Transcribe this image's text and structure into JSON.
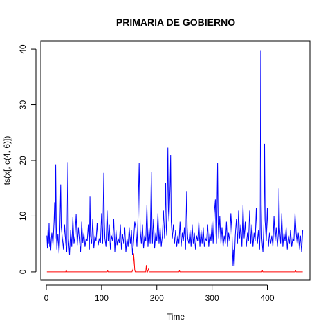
{
  "chart_data": {
    "type": "line",
    "title": "PRIMARIA DE GOBIERNO",
    "xlabel": "Time",
    "ylabel": "ts(x[, c(4, 6)])",
    "xlim": [
      -10,
      477
    ],
    "ylim": [
      -1.5,
      41.5
    ],
    "x_ticks": [
      0,
      100,
      200,
      300,
      400
    ],
    "y_ticks": [
      0,
      10,
      20,
      30,
      40
    ],
    "grid": false,
    "legend": "none",
    "series": [
      {
        "color": "#0000FF",
        "points": [
          [
            1,
            6.5
          ],
          [
            2,
            4.2
          ],
          [
            3,
            7.5
          ],
          [
            4,
            5.0
          ],
          [
            5,
            8.8
          ],
          [
            6,
            4.5
          ],
          [
            7,
            6.2
          ],
          [
            8,
            3.8
          ],
          [
            9,
            5.9
          ],
          [
            10,
            7.0
          ],
          [
            12,
            4.8
          ],
          [
            14,
            9.0
          ],
          [
            15,
            12.5
          ],
          [
            16,
            6.0
          ],
          [
            17,
            19.3
          ],
          [
            18,
            8.2
          ],
          [
            19,
            4.0
          ],
          [
            21,
            6.8
          ],
          [
            23,
            3.3
          ],
          [
            24,
            5.5
          ],
          [
            26,
            15.7
          ],
          [
            27,
            8.0
          ],
          [
            29,
            6.0
          ],
          [
            31,
            4.0
          ],
          [
            33,
            8.5
          ],
          [
            35,
            5.2
          ],
          [
            37,
            3.5
          ],
          [
            38,
            12.0
          ],
          [
            39,
            19.7
          ],
          [
            40,
            6.0
          ],
          [
            42,
            3.0
          ],
          [
            44,
            7.5
          ],
          [
            46,
            4.5
          ],
          [
            48,
            9.8
          ],
          [
            50,
            5.0
          ],
          [
            52,
            6.5
          ],
          [
            54,
            10.3
          ],
          [
            56,
            4.8
          ],
          [
            58,
            8.0
          ],
          [
            60,
            5.5
          ],
          [
            62,
            3.5
          ],
          [
            64,
            9.0
          ],
          [
            66,
            5.2
          ],
          [
            68,
            7.0
          ],
          [
            70,
            4.5
          ],
          [
            72,
            6.0
          ],
          [
            74,
            5.5
          ],
          [
            76,
            8.5
          ],
          [
            78,
            4.0
          ],
          [
            79,
            13.5
          ],
          [
            80,
            6.5
          ],
          [
            82,
            5.0
          ],
          [
            84,
            9.5
          ],
          [
            86,
            4.2
          ],
          [
            88,
            6.5
          ],
          [
            90,
            5.5
          ],
          [
            92,
            8.8
          ],
          [
            94,
            4.8
          ],
          [
            96,
            6.0
          ],
          [
            98,
            5.2
          ],
          [
            100,
            10.5
          ],
          [
            102,
            5.0
          ],
          [
            104,
            17.8
          ],
          [
            105,
            9.0
          ],
          [
            106,
            6.0
          ],
          [
            108,
            4.5
          ],
          [
            110,
            11.0
          ],
          [
            112,
            5.5
          ],
          [
            114,
            8.5
          ],
          [
            116,
            4.0
          ],
          [
            118,
            6.5
          ],
          [
            120,
            5.5
          ],
          [
            122,
            9.5
          ],
          [
            124,
            3.5
          ],
          [
            126,
            7.5
          ],
          [
            128,
            4.8
          ],
          [
            130,
            6.0
          ],
          [
            132,
            5.2
          ],
          [
            134,
            8.5
          ],
          [
            136,
            4.0
          ],
          [
            138,
            6.8
          ],
          [
            140,
            5.0
          ],
          [
            142,
            8.0
          ],
          [
            144,
            3.5
          ],
          [
            146,
            6.0
          ],
          [
            148,
            4.5
          ],
          [
            150,
            8.0
          ],
          [
            152,
            5.0
          ],
          [
            154,
            7.5
          ],
          [
            156,
            3.0
          ],
          [
            158,
            5.5
          ],
          [
            160,
            9.0
          ],
          [
            162,
            7.8
          ],
          [
            164,
            4.5
          ],
          [
            166,
            9.8
          ],
          [
            168,
            19.6
          ],
          [
            170,
            7.5
          ],
          [
            172,
            5.0
          ],
          [
            174,
            8.5
          ],
          [
            176,
            4.2
          ],
          [
            178,
            6.5
          ],
          [
            180,
            5.5
          ],
          [
            182,
            12.0
          ],
          [
            184,
            4.5
          ],
          [
            186,
            8.0
          ],
          [
            188,
            5.0
          ],
          [
            190,
            18.0
          ],
          [
            191,
            10.0
          ],
          [
            192,
            5.0
          ],
          [
            194,
            9.5
          ],
          [
            196,
            4.2
          ],
          [
            198,
            7.0
          ],
          [
            200,
            5.5
          ],
          [
            202,
            10.5
          ],
          [
            204,
            5.0
          ],
          [
            206,
            8.0
          ],
          [
            208,
            4.5
          ],
          [
            210,
            6.5
          ],
          [
            212,
            11.0
          ],
          [
            214,
            6.0
          ],
          [
            216,
            16.0
          ],
          [
            217,
            8.0
          ],
          [
            218,
            6.5
          ],
          [
            220,
            22.3
          ],
          [
            221,
            11.0
          ],
          [
            222,
            9.0
          ],
          [
            224,
            15.5
          ],
          [
            225,
            21.0
          ],
          [
            226,
            9.0
          ],
          [
            228,
            6.0
          ],
          [
            230,
            8.5
          ],
          [
            232,
            5.0
          ],
          [
            234,
            7.5
          ],
          [
            236,
            4.5
          ],
          [
            238,
            6.5
          ],
          [
            240,
            5.0
          ],
          [
            242,
            9.0
          ],
          [
            244,
            4.5
          ],
          [
            246,
            7.0
          ],
          [
            248,
            5.5
          ],
          [
            250,
            8.0
          ],
          [
            252,
            4.0
          ],
          [
            254,
            14.5
          ],
          [
            255,
            8.0
          ],
          [
            256,
            6.0
          ],
          [
            258,
            5.0
          ],
          [
            260,
            7.5
          ],
          [
            262,
            4.5
          ],
          [
            264,
            8.5
          ],
          [
            266,
            5.0
          ],
          [
            268,
            7.0
          ],
          [
            270,
            4.0
          ],
          [
            272,
            6.5
          ],
          [
            274,
            5.5
          ],
          [
            276,
            9.0
          ],
          [
            278,
            4.5
          ],
          [
            280,
            7.5
          ],
          [
            282,
            5.0
          ],
          [
            284,
            8.0
          ],
          [
            286,
            4.5
          ],
          [
            288,
            6.0
          ],
          [
            290,
            5.5
          ],
          [
            292,
            8.5
          ],
          [
            294,
            4.5
          ],
          [
            296,
            7.0
          ],
          [
            298,
            5.5
          ],
          [
            300,
            9.0
          ],
          [
            302,
            5.0
          ],
          [
            304,
            10.5
          ],
          [
            306,
            13.0
          ],
          [
            307,
            7.0
          ],
          [
            308,
            5.0
          ],
          [
            310,
            19.6
          ],
          [
            311,
            9.0
          ],
          [
            312,
            6.0
          ],
          [
            314,
            10.0
          ],
          [
            316,
            5.0
          ],
          [
            318,
            8.0
          ],
          [
            320,
            4.5
          ],
          [
            322,
            6.5
          ],
          [
            324,
            5.0
          ],
          [
            326,
            9.0
          ],
          [
            328,
            4.5
          ],
          [
            330,
            7.0
          ],
          [
            332,
            5.5
          ],
          [
            334,
            10.5
          ],
          [
            336,
            7.0
          ],
          [
            338,
            1.0
          ],
          [
            339,
            4.0
          ],
          [
            340,
            1.0
          ],
          [
            342,
            6.5
          ],
          [
            344,
            9.5
          ],
          [
            346,
            5.0
          ],
          [
            348,
            11.0
          ],
          [
            350,
            6.0
          ],
          [
            352,
            8.5
          ],
          [
            354,
            4.5
          ],
          [
            356,
            12.0
          ],
          [
            358,
            6.0
          ],
          [
            360,
            9.0
          ],
          [
            362,
            4.5
          ],
          [
            364,
            7.0
          ],
          [
            366,
            5.5
          ],
          [
            368,
            11.0
          ],
          [
            370,
            5.0
          ],
          [
            372,
            8.5
          ],
          [
            374,
            4.5
          ],
          [
            376,
            7.0
          ],
          [
            378,
            5.5
          ],
          [
            380,
            11.5
          ],
          [
            382,
            5.0
          ],
          [
            384,
            7.5
          ],
          [
            386,
            4.0
          ],
          [
            387,
            8.0
          ],
          [
            388,
            39.7
          ],
          [
            389,
            12.0
          ],
          [
            390,
            6.0
          ],
          [
            392,
            3.5
          ],
          [
            394,
            9.5
          ],
          [
            395,
            23.0
          ],
          [
            396,
            9.0
          ],
          [
            398,
            5.5
          ],
          [
            400,
            11.5
          ],
          [
            402,
            4.5
          ],
          [
            404,
            7.0
          ],
          [
            406,
            5.0
          ],
          [
            408,
            6.5
          ],
          [
            410,
            4.5
          ],
          [
            412,
            10.0
          ],
          [
            414,
            5.5
          ],
          [
            416,
            8.0
          ],
          [
            418,
            4.5
          ],
          [
            420,
            7.0
          ],
          [
            421,
            15.0
          ],
          [
            422,
            8.0
          ],
          [
            424,
            5.0
          ],
          [
            426,
            10.5
          ],
          [
            428,
            4.5
          ],
          [
            430,
            7.0
          ],
          [
            432,
            5.5
          ],
          [
            434,
            8.0
          ],
          [
            436,
            4.0
          ],
          [
            438,
            6.5
          ],
          [
            440,
            5.0
          ],
          [
            442,
            7.5
          ],
          [
            444,
            4.5
          ],
          [
            446,
            6.0
          ],
          [
            448,
            5.5
          ],
          [
            450,
            10.5
          ],
          [
            452,
            7.0
          ],
          [
            454,
            5.0
          ],
          [
            456,
            7.0
          ],
          [
            458,
            4.0
          ],
          [
            460,
            6.5
          ],
          [
            462,
            3.5
          ],
          [
            464,
            7.5
          ]
        ]
      },
      {
        "color": "#FF0000",
        "points": [
          [
            1,
            0.0
          ],
          [
            35,
            0.0
          ],
          [
            36,
            0.3
          ],
          [
            37,
            0.0
          ],
          [
            110,
            0.0
          ],
          [
            111,
            0.2
          ],
          [
            112,
            0.0
          ],
          [
            155,
            0.0
          ],
          [
            157,
            0.5
          ],
          [
            158,
            3.3
          ],
          [
            159,
            2.0
          ],
          [
            160,
            0.3
          ],
          [
            161,
            0.0
          ],
          [
            180,
            0.0
          ],
          [
            181,
            1.2
          ],
          [
            182,
            0.2
          ],
          [
            183,
            0.0
          ],
          [
            185,
            0.5
          ],
          [
            186,
            0.0
          ],
          [
            240,
            0.0
          ],
          [
            241,
            0.2
          ],
          [
            242,
            0.0
          ],
          [
            390,
            0.0
          ],
          [
            391,
            0.2
          ],
          [
            392,
            0.0
          ],
          [
            450,
            0.0
          ],
          [
            451,
            0.2
          ],
          [
            452,
            0.0
          ],
          [
            464,
            0.0
          ]
        ]
      }
    ]
  }
}
